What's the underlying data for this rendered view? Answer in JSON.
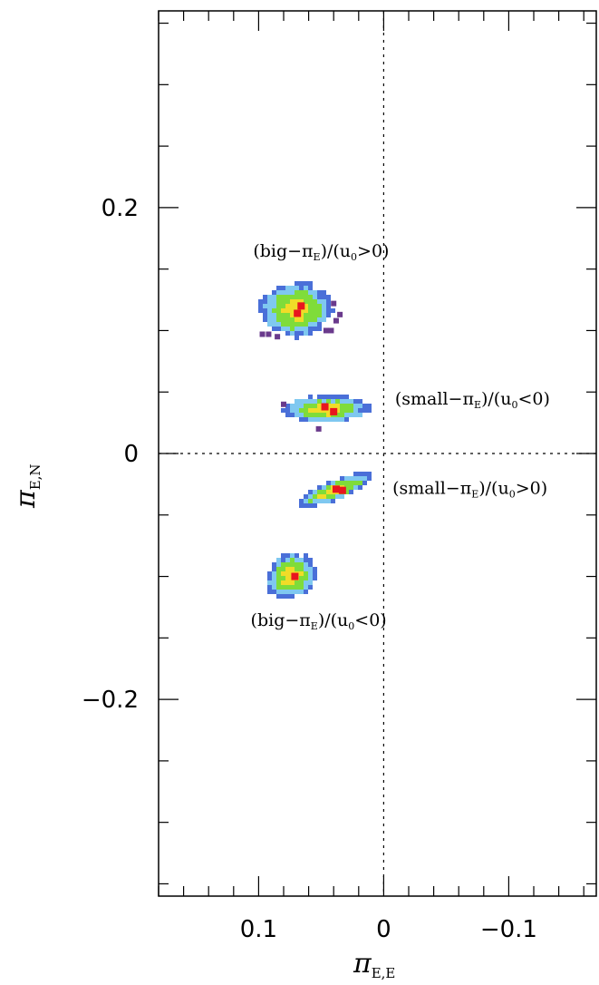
{
  "chart_data": {
    "type": "scatter",
    "title": "",
    "xlabel": {
      "base": "π",
      "sub": "E,E"
    },
    "ylabel": {
      "base": "π",
      "sub": "E,N"
    },
    "xlim": [
      0.18,
      -0.17
    ],
    "ylim": [
      -0.36,
      0.36
    ],
    "x_reversed": true,
    "x_ticks": [
      {
        "value": 0.1,
        "label": "0.1"
      },
      {
        "value": 0,
        "label": "0"
      },
      {
        "value": -0.1,
        "label": "−0.1"
      }
    ],
    "y_ticks": [
      {
        "value": 0.2,
        "label": "0.2"
      },
      {
        "value": 0,
        "label": "0"
      },
      {
        "value": -0.2,
        "label": "−0.2"
      }
    ],
    "x_minor_step": 0.02,
    "y_minor_step": 0.05,
    "reference_lines": {
      "x": 0,
      "y": 0,
      "style": "dotted"
    },
    "confidence_colors": {
      "outer": "#4a6fd8",
      "level3": "#7fc8f0",
      "level2": "#7fdc3a",
      "level1": "#f0dc28",
      "best": "#e8161e",
      "outlier": "#6a3a8c"
    },
    "solutions": [
      {
        "name": "big-piE u0>0",
        "center": [
          0.07,
          0.117
        ],
        "radii": [
          0.028,
          0.022
        ],
        "angle_deg": 0,
        "best_points": [
          [
            0.066,
            0.12
          ],
          [
            0.069,
            0.114
          ]
        ],
        "outliers": [
          [
            0.04,
            0.122
          ],
          [
            0.038,
            0.108
          ],
          [
            0.042,
            0.1
          ],
          [
            0.046,
            0.1
          ],
          [
            0.085,
            0.095
          ],
          [
            0.092,
            0.097
          ],
          [
            0.097,
            0.097
          ],
          [
            0.035,
            0.113
          ]
        ],
        "label": {
          "open": "(big−π",
          "sub1": "E",
          "mid": ")/(u",
          "sub2": "0",
          "close": ">0)",
          "at": [
            0.05,
            0.16
          ]
        }
      },
      {
        "name": "small-piE u0<0",
        "center": [
          0.046,
          0.036
        ],
        "radii": [
          0.034,
          0.011
        ],
        "angle_deg": 0,
        "best_points": [
          [
            0.047,
            0.038
          ],
          [
            0.04,
            0.034
          ]
        ],
        "outliers": [
          [
            0.052,
            0.02
          ],
          [
            0.08,
            0.04
          ]
        ],
        "label": {
          "open": "(small−π",
          "sub1": "E",
          "mid": ")/(u",
          "sub2": "0",
          "close": "<0)",
          "at": [
            -0.071,
            0.04
          ]
        }
      },
      {
        "name": "small-piE u0>0",
        "center": [
          0.039,
          -0.03
        ],
        "radii": [
          0.031,
          0.008
        ],
        "angle_deg": -22,
        "best_points": [
          [
            0.038,
            -0.029
          ],
          [
            0.033,
            -0.03
          ]
        ],
        "outliers": [],
        "label": {
          "open": "(small−π",
          "sub1": "E",
          "mid": ")/(u",
          "sub2": "0",
          "close": ">0)",
          "at": [
            -0.069,
            -0.033
          ]
        }
      },
      {
        "name": "big-piE u0<0",
        "center": [
          0.074,
          -0.1
        ],
        "radii": [
          0.02,
          0.018
        ],
        "angle_deg": -25,
        "best_points": [
          [
            0.071,
            -0.1
          ]
        ],
        "outliers": [],
        "label": {
          "open": "(big−π",
          "sub1": "E",
          "mid": ")/(u",
          "sub2": "0",
          "close": "<0)",
          "at": [
            0.052,
            -0.14
          ]
        }
      }
    ]
  }
}
